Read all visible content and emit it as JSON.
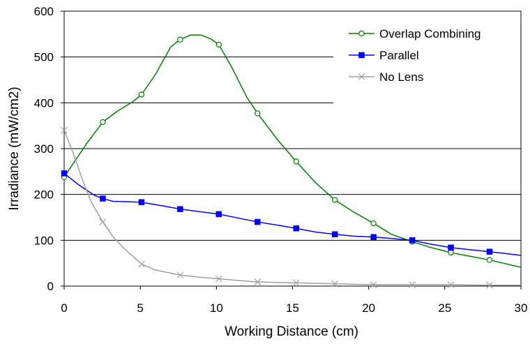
{
  "chart_data": {
    "type": "line",
    "title": "",
    "xlabel": "Working Distance (cm)",
    "ylabel": "Irradiance (mW/cm2)",
    "xlim": [
      0,
      30
    ],
    "ylim": [
      0,
      600
    ],
    "xticks": [
      "0",
      "5",
      "10",
      "15",
      "20",
      "25",
      "30"
    ],
    "yticks": [
      "0",
      "100",
      "200",
      "300",
      "400",
      "500",
      "600"
    ],
    "grid": "horizontal",
    "legend_position": "top-right",
    "series": [
      {
        "name": "Overlap Combining",
        "color": "#008000",
        "marker": "open-circle",
        "x": [
          0,
          2.54,
          5.08,
          7.62,
          10.16,
          12.7,
          15.24,
          17.78,
          20.32,
          22.86,
          25.4,
          27.94
        ],
        "y": [
          238,
          358,
          418,
          538,
          527,
          377,
          272,
          188,
          137,
          97,
          73,
          57
        ],
        "curve_x": [
          0,
          1.5,
          2.54,
          3.5,
          4.5,
          5.08,
          6.0,
          7.0,
          7.62,
          8.3,
          9.0,
          9.6,
          10.16,
          11.0,
          12.0,
          12.7,
          14.0,
          15.24,
          16.5,
          17.78,
          19.0,
          20.32,
          21.5,
          22.86,
          24.0,
          25.4,
          26.5,
          27.94,
          30
        ],
        "curve_y": [
          238,
          312,
          358,
          382,
          402,
          418,
          462,
          522,
          538,
          548,
          548,
          540,
          527,
          478,
          412,
          377,
          320,
          272,
          226,
          188,
          162,
          137,
          113,
          97,
          85,
          73,
          66,
          57,
          41
        ]
      },
      {
        "name": "Parallel",
        "color": "#0000FF",
        "marker": "filled-square",
        "x": [
          0,
          2.54,
          5.08,
          7.62,
          10.16,
          12.7,
          15.24,
          17.78,
          20.32,
          22.86,
          25.4,
          27.94
        ],
        "y": [
          246,
          191,
          183,
          168,
          157,
          140,
          126,
          113,
          107,
          100,
          84,
          75
        ],
        "curve_x": [
          0,
          1.0,
          2.0,
          2.54,
          3.2,
          4.2,
          5.08,
          6.5,
          7.62,
          9.0,
          10.16,
          11.5,
          12.7,
          14.0,
          15.24,
          16.5,
          17.78,
          19.0,
          20.32,
          21.5,
          22.86,
          24.0,
          25.4,
          26.5,
          27.94,
          29.0,
          30
        ],
        "curve_y": [
          246,
          220,
          198,
          191,
          185,
          184,
          183,
          175,
          168,
          162,
          157,
          148,
          140,
          133,
          126,
          118,
          113,
          109,
          107,
          104,
          100,
          92,
          84,
          80,
          75,
          71,
          67
        ]
      },
      {
        "name": "No Lens",
        "color": "#A0A0A0",
        "marker": "x",
        "x": [
          0,
          2.54,
          5.08,
          7.62,
          10.16,
          12.7,
          15.24,
          17.78,
          20.32,
          22.86,
          25.4,
          27.94
        ],
        "y": [
          340,
          140,
          48,
          24,
          16,
          9,
          7,
          5,
          3,
          3,
          3,
          2
        ],
        "curve_x": [
          0,
          0.6,
          1.2,
          1.8,
          2.54,
          3.2,
          4.0,
          5.08,
          6.0,
          7.62,
          9.0,
          10.16,
          11.5,
          12.7,
          15.24,
          17.78,
          20.32,
          22.86,
          25.4,
          27.94,
          30
        ],
        "curve_y": [
          340,
          290,
          232,
          182,
          140,
          108,
          80,
          48,
          35,
          24,
          19,
          16,
          12,
          9,
          7,
          5,
          3,
          3,
          3,
          2,
          2
        ]
      }
    ]
  }
}
